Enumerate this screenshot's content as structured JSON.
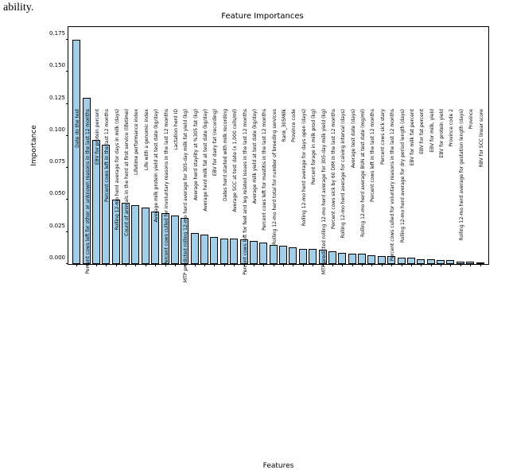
{
  "stray_text": "ability.",
  "chart": {
    "type": "bar",
    "title": "Feature Importances",
    "title_fontsize": 10,
    "xlabel": "Features",
    "ylabel": "Importance",
    "label_fontsize": 9,
    "tick_fontsize": 7,
    "xtick_fontsize": 6,
    "background_color": "#ffffff",
    "bar_color": "#a2cee8",
    "bar_edge_color": "#000000",
    "axis_color": "#000000",
    "bar_width": 0.8,
    "ylim": [
      0,
      0.185
    ],
    "yticks": [
      0.0,
      0.025,
      0.05,
      0.075,
      0.1,
      0.125,
      0.15,
      0.175
    ],
    "ytick_labels": [
      "0.000",
      "0.025",
      "0.050",
      "0.075",
      "0.100",
      "0.125",
      "0.150",
      "0.175"
    ],
    "categories": [
      "Date do the test",
      "Percent cows left for other or unknown reasons in the last 12 months",
      "EBV for protein percent",
      "Percent cows left in the last 12 months",
      "Rolling 12-mo herd average for days in milk (days)",
      "Count of animals in the herd at first service (lifetime)",
      "Lifetime performance index",
      "Life with a genomic index",
      "Average milk protein yield at test date (kg/day)",
      "Percent cows culled for involuntary reasons in the last 12 months",
      "Lactation herd ID",
      "MTP predicted rolling 12-mo herd average for 305-day milk fat yield (kg)",
      "Average herd staylity at %305 fat (kg)",
      "Average herd milk fat at test date (kg/day)",
      "EBV for dairy fat (recording)",
      "Dates herd started with milk recording",
      "Average SCC at test date (x 1,000 cells/ml)",
      "Percent cows left for feet and leg related issues in the last 12 months",
      "Average milk yield at test date (kg/day)",
      "Percent cows left for mastitis in the last 12 months",
      "Rolling 12-mo herd total for number of breeding services",
      "Rank_305Milk",
      "Province code",
      "Rolling 12-mo herd average for days open (days)",
      "Percent forage in milk prod (kg)",
      "MTP predicted rolling 12-mo herd average for 305-day milk yield (kg)",
      "Percent cows sick by 60 DIM in the last 12 months",
      "Rolling 12-mo herd average for calving interval (days)",
      "Average test date (days)",
      "Rolling 12-mo herd average BUN at test date (mg/ml)",
      "Percent cows left in the last 12 months",
      "Percent cows sick stary",
      "Percent cows culled for voluntary reasons in the last 12 months",
      "Rolling 12-mo herd average for dry period length (days)",
      "EBV for milk fat percent",
      "EBV for fat percent",
      "EBV for milk, yield",
      "EBV for protein yield",
      "Province code 2",
      "Rolling 12-mo herd average for gestation length (days)",
      "Province",
      "RBV for SCC linear score"
    ],
    "values": [
      0.175,
      0.13,
      0.097,
      0.093,
      0.05,
      0.048,
      0.046,
      0.044,
      0.041,
      0.04,
      0.038,
      0.036,
      0.024,
      0.023,
      0.021,
      0.02,
      0.02,
      0.019,
      0.018,
      0.017,
      0.015,
      0.014,
      0.013,
      0.012,
      0.012,
      0.011,
      0.01,
      0.009,
      0.008,
      0.008,
      0.007,
      0.006,
      0.006,
      0.005,
      0.005,
      0.004,
      0.004,
      0.003,
      0.003,
      0.002,
      0.002,
      0.001
    ]
  }
}
